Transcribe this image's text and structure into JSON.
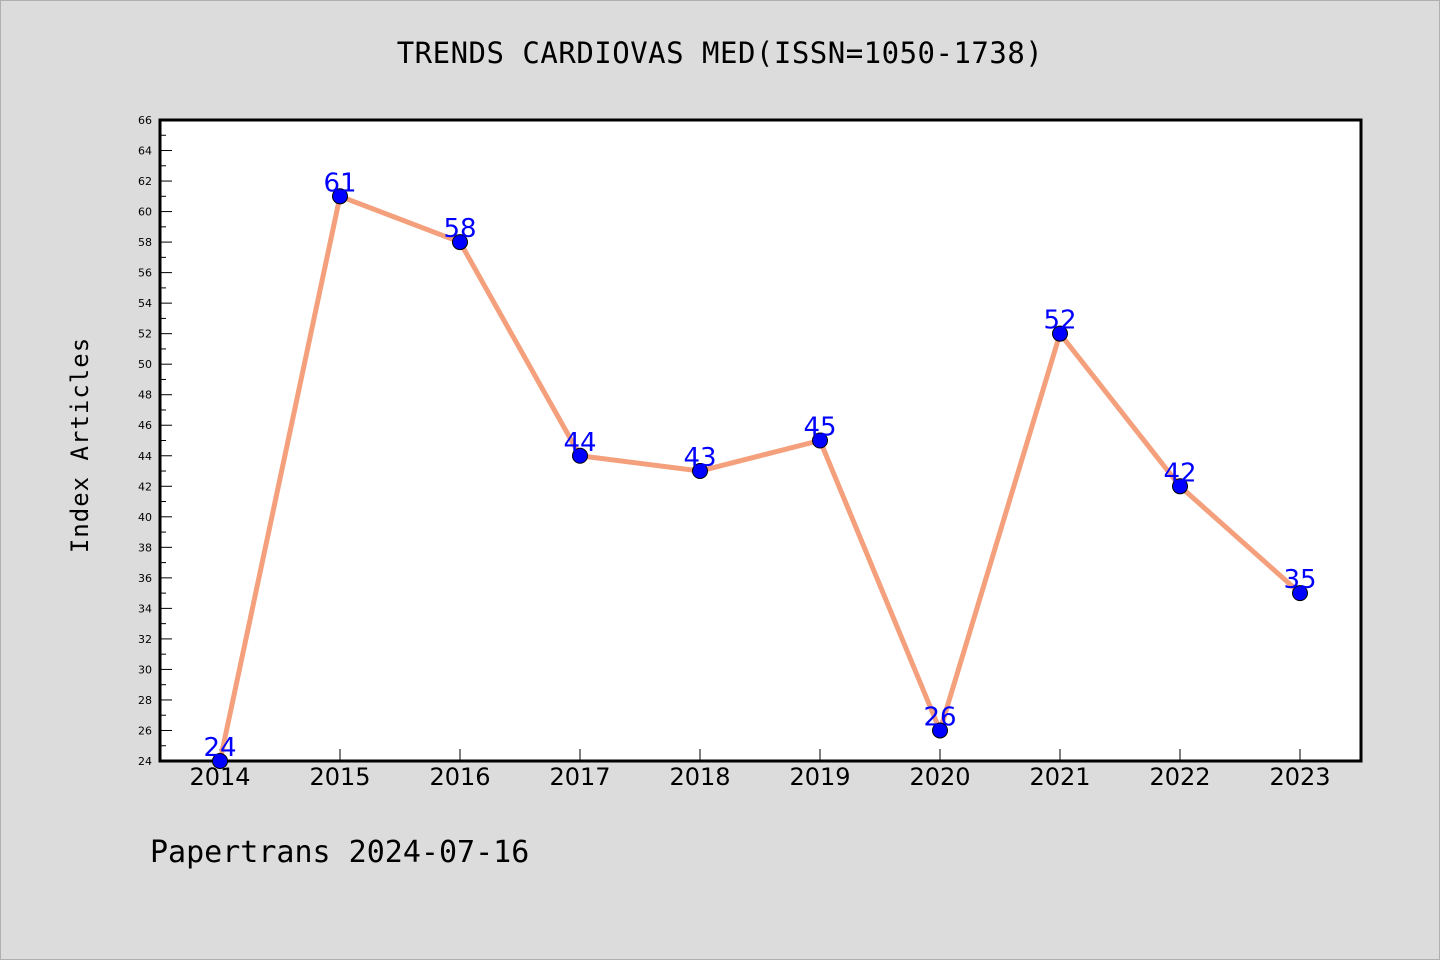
{
  "chart_data": {
    "type": "line",
    "title": "TRENDS CARDIOVAS MED(ISSN=1050-1738)",
    "xlabel": "",
    "ylabel": "Index Articles",
    "categories": [
      "2014",
      "2015",
      "2016",
      "2017",
      "2018",
      "2019",
      "2020",
      "2021",
      "2022",
      "2023"
    ],
    "series": [
      {
        "values": [
          24,
          61,
          58,
          44,
          43,
          45,
          26,
          52,
          42,
          35
        ]
      }
    ],
    "ylim": [
      24,
      66
    ],
    "yticks": [
      24,
      26,
      28,
      30,
      32,
      34,
      36,
      38,
      40,
      42,
      44,
      46,
      48,
      50,
      52,
      54,
      56,
      58,
      60,
      62,
      64,
      66
    ],
    "grid": false,
    "colors": {
      "line": "#f4a07c",
      "marker": "#0000ff",
      "label": "#0000ff",
      "background": "#dcdcdc",
      "plot_bg": "#ffffff"
    }
  },
  "footer": "Papertrans 2024-07-16"
}
